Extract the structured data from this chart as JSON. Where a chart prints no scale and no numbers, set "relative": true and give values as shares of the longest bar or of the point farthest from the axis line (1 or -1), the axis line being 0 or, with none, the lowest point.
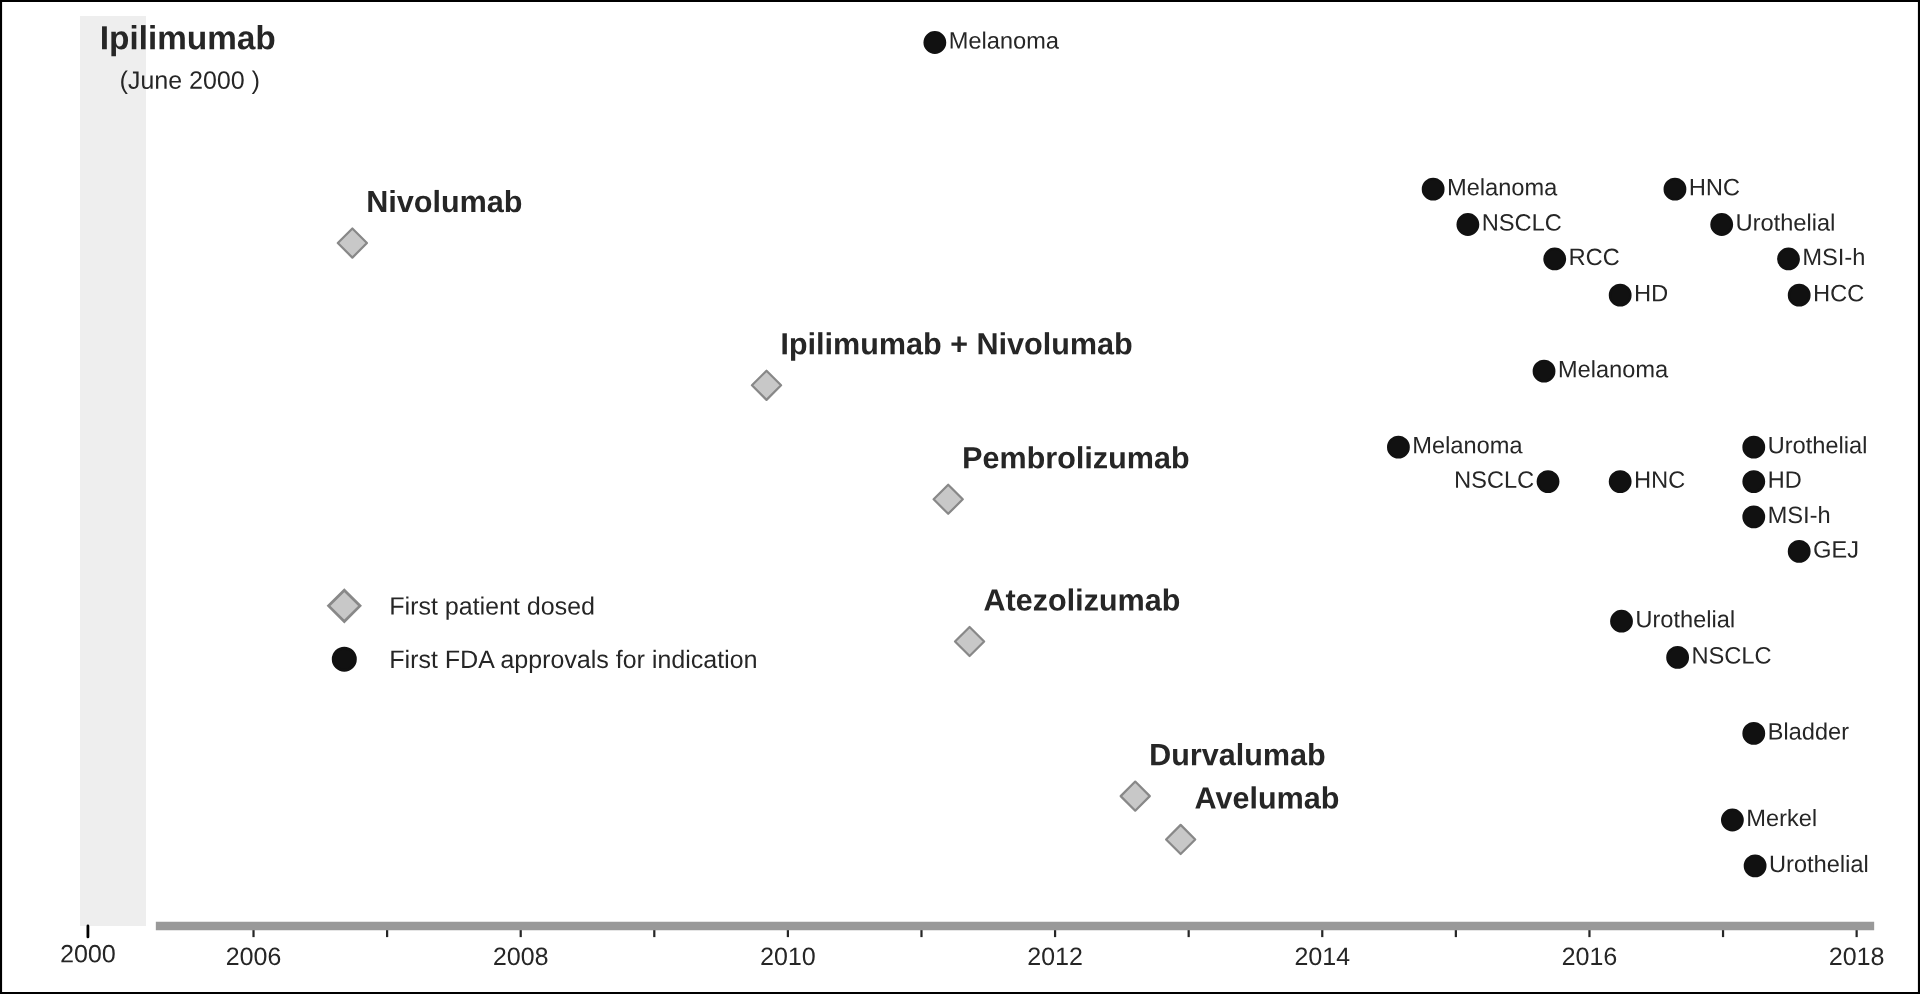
{
  "chart_data": [
    {
      "type": "other",
      "annotations": [
        "Ipilimumab",
        "(June 2000 )",
        "2000"
      ]
    },
    {
      "type": "scatter",
      "relative": true,
      "xlim": [
        2005.3,
        2018.1
      ],
      "xticks": [
        2006,
        {
          "value": 2007,
          "label": null
        },
        2008,
        {
          "value": 2009,
          "label": null
        },
        2010,
        {
          "value": 2011,
          "label": null
        },
        2012,
        {
          "value": 2013,
          "label": null
        },
        2014,
        {
          "value": 2015,
          "label": null
        },
        2016,
        {
          "value": 2017,
          "label": null
        },
        2018
      ],
      "legend": "left",
      "grid": false,
      "tick_labels": "x",
      "series": [
        {
          "name": "First patient dosed",
          "color": "#c8c8c8",
          "marker": "diamond",
          "x": [
            2006.74,
            2009.84,
            2011.2,
            2011.36,
            2012.6,
            2012.94
          ],
          "values": [
            0.773,
            0.612,
            0.483,
            0.322,
            0.147,
            0.098
          ]
        },
        {
          "name": "First FDA approvals for indication",
          "color": "#111111",
          "marker": "circle",
          "x": [
            2011.1,
            2014.83,
            2015.09,
            2015.74,
            2016.23,
            2016.64,
            2016.99,
            2017.49,
            2017.57,
            2015.66,
            2014.57,
            2015.69,
            2016.23,
            2017.23,
            2017.23,
            2017.23,
            2017.57,
            2016.24,
            2016.66,
            2017.23,
            2017.07,
            2017.24
          ],
          "values": [
            1.0,
            0.834,
            0.794,
            0.755,
            0.714,
            0.834,
            0.794,
            0.755,
            0.714,
            0.628,
            0.542,
            0.503,
            0.503,
            0.542,
            0.503,
            0.463,
            0.424,
            0.345,
            0.304,
            0.218,
            0.12,
            0.068
          ]
        }
      ],
      "annotations": [
        {
          "text": "Nivolumab",
          "x": 2006.74,
          "y": 0.773
        },
        {
          "text": "Ipilimumab + Nivolumab",
          "x": 2009.84,
          "y": 0.612
        },
        {
          "text": "Pembrolizumab",
          "x": 2011.2,
          "y": 0.483
        },
        {
          "text": "Atezolizumab",
          "x": 2011.36,
          "y": 0.322
        },
        {
          "text": "Durvalumab",
          "x": 2012.6,
          "y": 0.147
        },
        {
          "text": "Avelumab",
          "x": 2012.94,
          "y": 0.098
        },
        {
          "text": "Melanoma",
          "x": 2011.1,
          "y": 1.0
        },
        {
          "text": "Melanoma",
          "x": 2014.83,
          "y": 0.834
        },
        {
          "text": "NSCLC",
          "x": 2015.09,
          "y": 0.794
        },
        {
          "text": "RCC",
          "x": 2015.74,
          "y": 0.755
        },
        {
          "text": "HD",
          "x": 2016.23,
          "y": 0.714
        },
        {
          "text": "HNC",
          "x": 2016.64,
          "y": 0.834
        },
        {
          "text": "Urothelial",
          "x": 2016.99,
          "y": 0.794
        },
        {
          "text": "MSI-h",
          "x": 2017.49,
          "y": 0.755
        },
        {
          "text": "HCC",
          "x": 2017.57,
          "y": 0.714
        },
        {
          "text": "Melanoma",
          "x": 2015.66,
          "y": 0.628
        },
        {
          "text": "Melanoma",
          "x": 2014.57,
          "y": 0.542
        },
        {
          "text": "NSCLC",
          "x": 2015.69,
          "y": 0.503
        },
        {
          "text": "HNC",
          "x": 2016.23,
          "y": 0.503
        },
        {
          "text": "Urothelial",
          "x": 2017.23,
          "y": 0.542
        },
        {
          "text": "HD",
          "x": 2017.23,
          "y": 0.503
        },
        {
          "text": "MSI-h",
          "x": 2017.23,
          "y": 0.463
        },
        {
          "text": "GEJ",
          "x": 2017.57,
          "y": 0.424
        },
        {
          "text": "Urothelial",
          "x": 2016.24,
          "y": 0.345
        },
        {
          "text": "NSCLC",
          "x": 2016.66,
          "y": 0.304
        },
        {
          "text": "Bladder",
          "x": 2017.23,
          "y": 0.218
        },
        {
          "text": "Merkel",
          "x": 2017.07,
          "y": 0.12
        },
        {
          "text": "Urothelial",
          "x": 2017.24,
          "y": 0.068
        }
      ]
    }
  ]
}
